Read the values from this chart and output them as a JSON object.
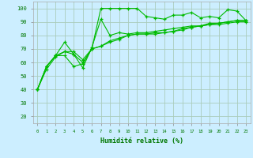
{
  "xlabel": "Humidité relative (%)",
  "bg_color": "#cceeff",
  "grid_color": "#aaccbb",
  "line_color": "#00bb00",
  "ylim": [
    15,
    105
  ],
  "xlim": [
    -0.5,
    23.5
  ],
  "yticks": [
    20,
    30,
    40,
    50,
    60,
    70,
    80,
    90,
    100
  ],
  "xticks": [
    0,
    1,
    2,
    3,
    4,
    5,
    6,
    7,
    8,
    9,
    10,
    11,
    12,
    13,
    14,
    15,
    16,
    17,
    18,
    19,
    20,
    21,
    22,
    23
  ],
  "series": [
    [
      40,
      57,
      65,
      65,
      57,
      59,
      70,
      100,
      100,
      100,
      100,
      100,
      94,
      93,
      92,
      95,
      95,
      97,
      93,
      94,
      93,
      99,
      98,
      91
    ],
    [
      40,
      57,
      65,
      75,
      66,
      56,
      71,
      92,
      80,
      82,
      81,
      82,
      82,
      83,
      84,
      85,
      86,
      87,
      87,
      89,
      89,
      90,
      91,
      91
    ],
    [
      40,
      57,
      65,
      68,
      66,
      60,
      70,
      72,
      76,
      78,
      80,
      81,
      81,
      82,
      82,
      83,
      85,
      86,
      87,
      88,
      89,
      90,
      91,
      91
    ],
    [
      40,
      55,
      64,
      68,
      68,
      62,
      70,
      72,
      75,
      77,
      80,
      81,
      81,
      81,
      82,
      83,
      84,
      86,
      87,
      88,
      88,
      89,
      90,
      90
    ]
  ]
}
